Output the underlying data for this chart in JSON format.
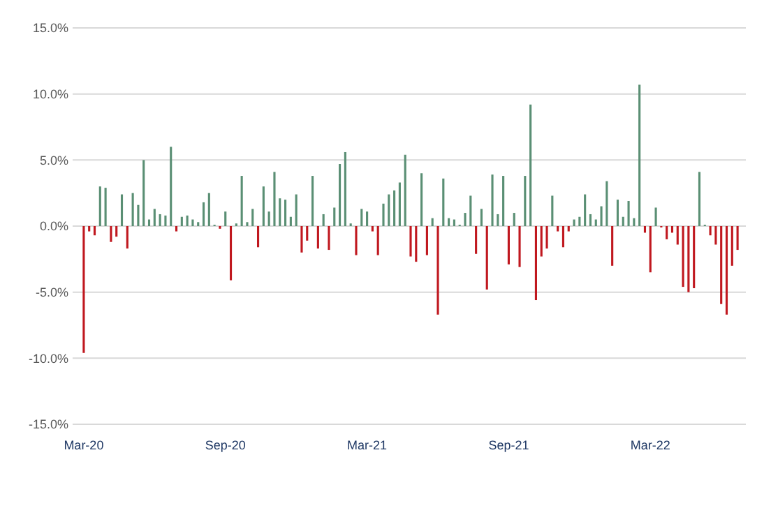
{
  "chart_data": {
    "type": "bar",
    "categories": [
      "Mar-20",
      null,
      null,
      null,
      null,
      null,
      null,
      null,
      null,
      null,
      null,
      null,
      null,
      null,
      null,
      null,
      null,
      null,
      null,
      null,
      null,
      null,
      null,
      null,
      null,
      null,
      "Sep-20",
      null,
      null,
      null,
      null,
      null,
      null,
      null,
      null,
      null,
      null,
      null,
      null,
      null,
      null,
      null,
      null,
      null,
      null,
      null,
      null,
      null,
      null,
      null,
      null,
      null,
      "Mar-21",
      null,
      null,
      null,
      null,
      null,
      null,
      null,
      null,
      null,
      null,
      null,
      null,
      null,
      null,
      null,
      null,
      null,
      null,
      null,
      null,
      null,
      null,
      null,
      null,
      null,
      "Sep-21",
      null,
      null,
      null,
      null,
      null,
      null,
      null,
      null,
      null,
      null,
      null,
      null,
      null,
      null,
      null,
      null,
      null,
      null,
      null,
      null,
      null,
      null,
      null,
      null,
      null,
      "Mar-22",
      null,
      null,
      null,
      null,
      null,
      null,
      null,
      null,
      null,
      null,
      null,
      null,
      null,
      null,
      null,
      null
    ],
    "values": [
      -9.6,
      -0.4,
      -0.7,
      3.0,
      2.9,
      -1.2,
      -0.8,
      2.4,
      -1.7,
      2.5,
      1.6,
      5.0,
      0.5,
      1.3,
      0.9,
      0.8,
      6.0,
      -0.4,
      0.7,
      0.8,
      0.5,
      0.3,
      1.8,
      2.5,
      0.1,
      -0.2,
      1.1,
      -4.1,
      0.2,
      3.8,
      0.3,
      1.3,
      -1.6,
      3.0,
      1.1,
      4.1,
      2.1,
      2.0,
      0.7,
      2.4,
      -2.0,
      -1.1,
      3.8,
      -1.7,
      0.9,
      -1.8,
      1.4,
      4.7,
      5.6,
      0.2,
      -2.2,
      1.3,
      1.1,
      -0.4,
      -2.2,
      1.7,
      2.4,
      2.7,
      3.3,
      5.4,
      -2.3,
      -2.7,
      4.0,
      -2.2,
      0.6,
      -6.7,
      3.6,
      0.6,
      0.5,
      0.1,
      1.0,
      2.3,
      -2.1,
      1.3,
      -4.8,
      3.9,
      0.9,
      3.8,
      -2.9,
      1.0,
      -3.1,
      3.8,
      9.2,
      -5.6,
      -2.3,
      -1.7,
      2.3,
      -0.4,
      -1.6,
      -0.4,
      0.5,
      0.7,
      2.4,
      0.9,
      0.5,
      1.5,
      3.4,
      -3.0,
      2.0,
      0.7,
      1.9,
      0.6,
      10.7,
      -0.5,
      -3.5,
      1.4,
      -0.1,
      -1.0,
      -0.5,
      -1.4,
      -4.6,
      -5.0,
      -4.7,
      4.1,
      0.1,
      -0.7,
      -1.4,
      -5.9,
      -6.7,
      -3.0,
      -1.8
    ],
    "colors": [
      "#c0181f",
      "#c0181f",
      "#c0181f",
      "#5a8f74",
      "#5a8f74",
      "#c0181f",
      "#c0181f",
      "#5a8f74",
      "#c0181f",
      "#5a8f74",
      "#5a8f74",
      "#5a8f74",
      "#5a8f74",
      "#5a8f74",
      "#5a8f74",
      "#5a8f74",
      "#5a8f74",
      "#c0181f",
      "#5a8f74",
      "#5a8f74",
      "#5a8f74",
      "#5a8f74",
      "#5a8f74",
      "#5a8f74",
      "#5a8f74",
      "#c0181f",
      "#5a8f74",
      "#c0181f",
      "#5a8f74",
      "#5a8f74",
      "#5a8f74",
      "#5a8f74",
      "#c0181f",
      "#5a8f74",
      "#5a8f74",
      "#5a8f74",
      "#5a8f74",
      "#5a8f74",
      "#5a8f74",
      "#5a8f74",
      "#c0181f",
      "#c0181f",
      "#5a8f74",
      "#c0181f",
      "#5a8f74",
      "#c0181f",
      "#5a8f74",
      "#5a8f74",
      "#5a8f74",
      "#5a8f74",
      "#c0181f",
      "#5a8f74",
      "#5a8f74",
      "#c0181f",
      "#c0181f",
      "#5a8f74",
      "#5a8f74",
      "#5a8f74",
      "#5a8f74",
      "#5a8f74",
      "#c0181f",
      "#c0181f",
      "#5a8f74",
      "#c0181f",
      "#5a8f74",
      "#c0181f",
      "#5a8f74",
      "#5a8f74",
      "#5a8f74",
      "#5a8f74",
      "#5a8f74",
      "#5a8f74",
      "#c0181f",
      "#5a8f74",
      "#c0181f",
      "#5a8f74",
      "#5a8f74",
      "#5a8f74",
      "#c0181f",
      "#5a8f74",
      "#c0181f",
      "#5a8f74",
      "#5a8f74",
      "#c0181f",
      "#c0181f",
      "#c0181f",
      "#5a8f74",
      "#c0181f",
      "#c0181f",
      "#c0181f",
      "#5a8f74",
      "#5a8f74",
      "#5a8f74",
      "#5a8f74",
      "#5a8f74",
      "#5a8f74",
      "#5a8f74",
      "#c0181f",
      "#5a8f74",
      "#5a8f74",
      "#5a8f74",
      "#5a8f74",
      "#5a8f74",
      "#c0181f",
      "#c0181f",
      "#5a8f74",
      "#c0181f",
      "#c0181f",
      "#c0181f",
      "#c0181f",
      "#c0181f",
      "#c0181f",
      "#c0181f",
      "#5a8f74",
      "#5a8f74",
      "#c0181f",
      "#c0181f",
      "#c0181f",
      "#c0181f",
      "#c0181f",
      "#c0181f"
    ],
    "ylim": [
      -15,
      15
    ],
    "yticks": [
      {
        "value": -15,
        "label": "-15.0%"
      },
      {
        "value": -10,
        "label": "-10.0%"
      },
      {
        "value": -5,
        "label": "-5.0%"
      },
      {
        "value": 0,
        "label": "0.0%"
      },
      {
        "value": 5,
        "label": "5.0%"
      },
      {
        "value": 10,
        "label": "10.0%"
      },
      {
        "value": 15,
        "label": "15.0%"
      }
    ],
    "grid": "y"
  }
}
